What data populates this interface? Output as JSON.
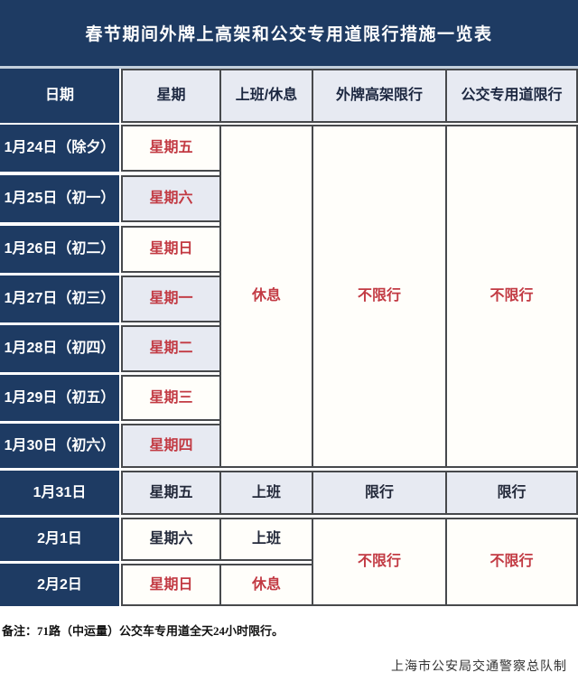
{
  "title": "春节期间外牌上高架和公交专用道限行措施一览表",
  "header": {
    "date": "日期",
    "week": "星期",
    "work": "上班/休息",
    "elevated": "外牌高架限行",
    "bus": "公交专用道限行"
  },
  "rows": [
    {
      "date": "1月24日（除夕）",
      "week": "星期五"
    },
    {
      "date": "1月25日（初一）",
      "week": "星期六"
    },
    {
      "date": "1月26日（初二）",
      "week": "星期日"
    },
    {
      "date": "1月27日（初三）",
      "week": "星期一"
    },
    {
      "date": "1月28日（初四）",
      "week": "星期二"
    },
    {
      "date": "1月29日（初五）",
      "week": "星期三"
    },
    {
      "date": "1月30日（初六）",
      "week": "星期四"
    },
    {
      "date": "1月31日",
      "week": "星期五",
      "work": "上班",
      "elevated": "限行",
      "bus": "限行"
    },
    {
      "date": "2月1日",
      "week": "星期六",
      "work": "上班"
    },
    {
      "date": "2月2日",
      "week": "星期日",
      "work": "休息"
    }
  ],
  "merged": {
    "work_rows_1_7": "休息",
    "elevated_rows_1_7": "不限行",
    "bus_rows_1_7": "不限行",
    "elevated_rows_9_10": "不限行",
    "bus_rows_9_10": "不限行"
  },
  "footnote": "备注：71路（中运量）公交车专用道全天24小时限行。",
  "credit": "上海市公安局交通警察总队制",
  "colors": {
    "navy": "#1e3b63",
    "red": "#c23a43",
    "light_cell": "#e7eaf2",
    "white_cell": "#fffefa",
    "border": "#47494c"
  }
}
